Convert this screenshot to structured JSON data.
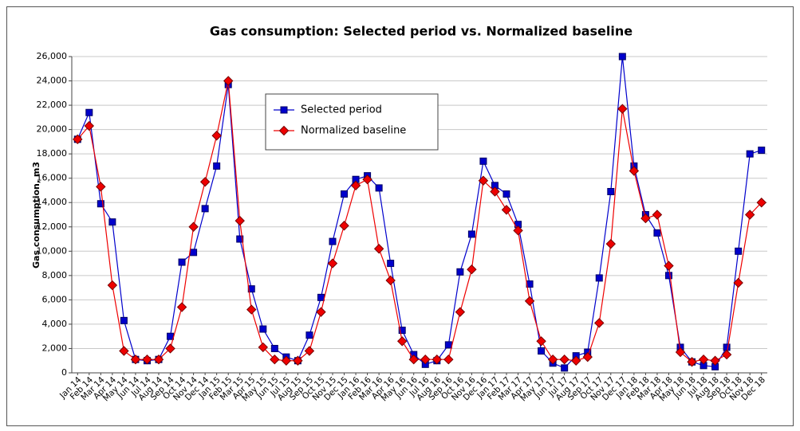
{
  "chart_data": {
    "type": "line",
    "title": "Gas consumption: Selected period vs. Normalized baseline",
    "y_label": "Gas consumption, m3",
    "categories": [
      "Jan 14",
      "Feb 14",
      "Mar 14",
      "Apr 14",
      "May 14",
      "Jun 14",
      "Jul 14",
      "Aug 14",
      "Sep 14",
      "Oct 14",
      "Nov 14",
      "Dec 14",
      "Jan 15",
      "Feb 15",
      "Mar 15",
      "Apr 15",
      "May 15",
      "Jun 15",
      "Jul 15",
      "Aug 15",
      "Sep 15",
      "Oct 15",
      "Nov 15",
      "Dec 15",
      "Jan 16",
      "Feb 16",
      "Mar 16",
      "Apr 16",
      "May 16",
      "Jun 16",
      "Jul 16",
      "Aug 16",
      "Sep 16",
      "Oct 16",
      "Nov 16",
      "Dec 16",
      "Jan 17",
      "Feb 17",
      "Mar 17",
      "Apr 17",
      "May 17",
      "Jun 17",
      "Jul 17",
      "Aug 17",
      "Sep 17",
      "Oct 17",
      "Nov 17",
      "Dec 17",
      "Jan 18",
      "Feb 18",
      "Mar 18",
      "Apr 18",
      "May 18",
      "Jun 18",
      "Jul 18",
      "Aug 18",
      "Sep 18",
      "Oct 18",
      "Nov 18",
      "Dec 18"
    ],
    "series": [
      {
        "name": "Selected period",
        "color": "#0000cc",
        "marker": "square",
        "values": [
          19200,
          21400,
          13900,
          12400,
          4300,
          1100,
          1000,
          1100,
          3000,
          9100,
          9900,
          13500,
          17000,
          23700,
          11000,
          6900,
          3600,
          2000,
          1300,
          1000,
          3100,
          6200,
          10800,
          14700,
          15900,
          16200,
          15200,
          9000,
          3500,
          1500,
          700,
          1000,
          2300,
          8300,
          11400,
          17400,
          15400,
          14700,
          12200,
          7300,
          1800,
          800,
          400,
          1400,
          1700,
          7800,
          14900,
          26000,
          17000,
          13000,
          11500,
          8000,
          2100,
          900,
          600,
          500,
          2100,
          10000,
          18000,
          18300
        ]
      },
      {
        "name": "Normalized baseline",
        "color": "#ee0000",
        "marker": "diamond",
        "values": [
          19200,
          20300,
          15300,
          7200,
          1800,
          1100,
          1100,
          1100,
          2000,
          5400,
          12000,
          15700,
          19500,
          24000,
          12500,
          5200,
          2100,
          1100,
          1000,
          1000,
          1800,
          5000,
          9000,
          12100,
          15400,
          15900,
          10200,
          7600,
          2600,
          1100,
          1100,
          1100,
          1100,
          5000,
          8500,
          15800,
          14900,
          13400,
          11700,
          5900,
          2600,
          1100,
          1100,
          1000,
          1300,
          4100,
          10600,
          21700,
          16600,
          12700,
          13000,
          8800,
          1700,
          900,
          1100,
          1000,
          1500,
          7400,
          13000,
          14000
        ]
      }
    ],
    "ylim": [
      0,
      26000
    ],
    "yticks": [
      0,
      {
        "value": 2000,
        "label": "2,000"
      },
      {
        "value": 4000,
        "label": "4,000"
      },
      {
        "value": 6000,
        "label": "6,000"
      },
      {
        "value": 8000,
        "label": "8,000"
      },
      {
        "value": 10000,
        "label": "10,000"
      },
      {
        "value": 12000,
        "label": "12,000"
      },
      {
        "value": 14000,
        "label": "14,000"
      },
      {
        "value": 16000,
        "label": "16,000"
      },
      {
        "value": 18000,
        "label": "18,000"
      },
      {
        "value": 20000,
        "label": "20,000"
      },
      {
        "value": 22000,
        "label": "22,000"
      },
      {
        "value": 24000,
        "label": "24,000"
      },
      {
        "value": 26000,
        "label": "26,000"
      }
    ],
    "grid": true
  }
}
